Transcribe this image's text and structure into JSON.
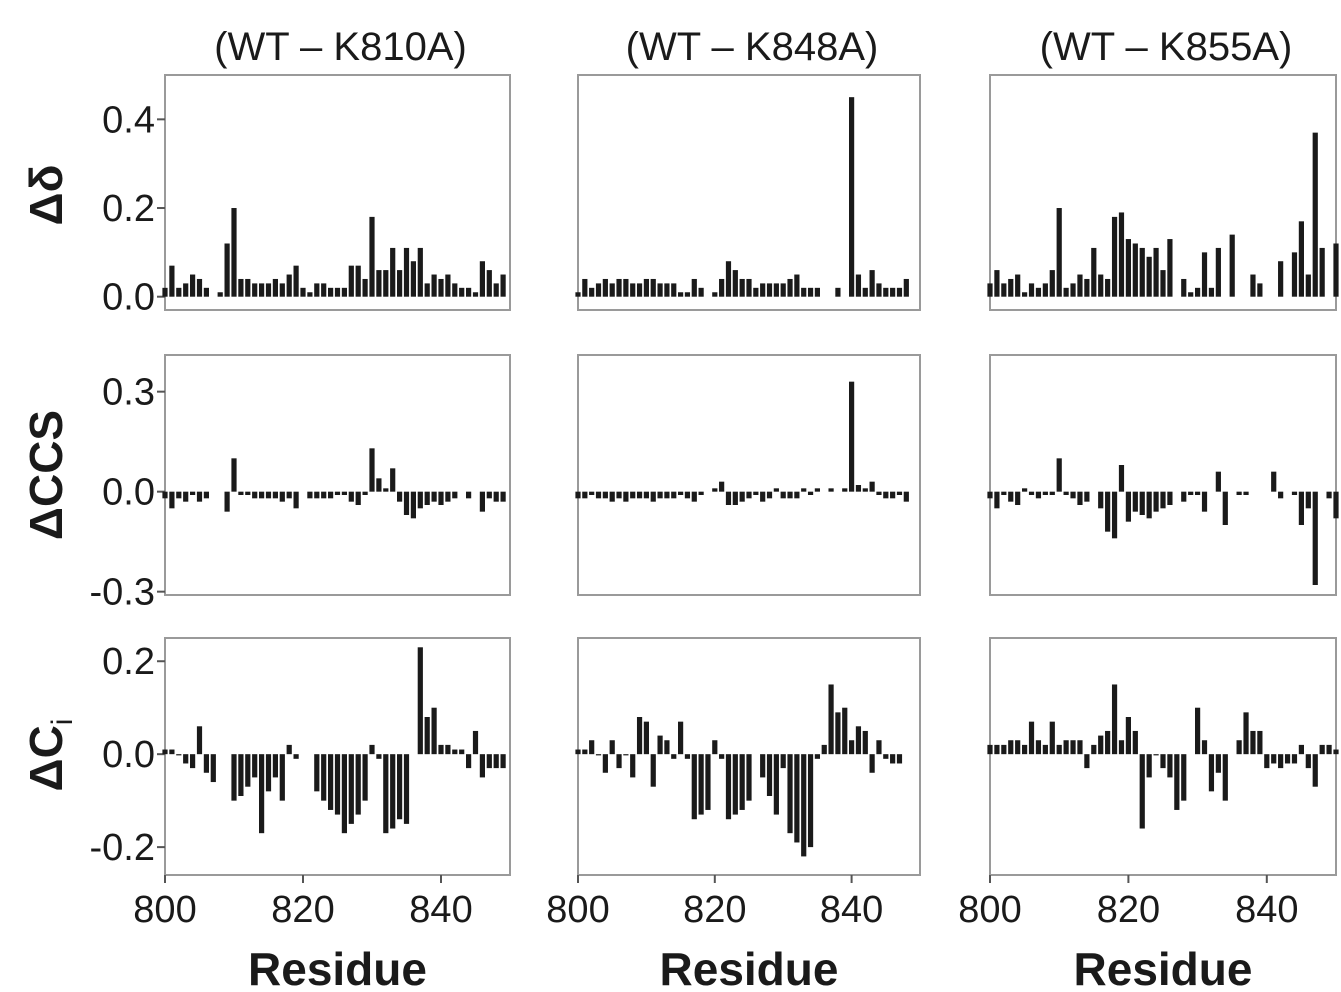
{
  "chart_data": [
    {
      "type": "bar",
      "title": "(WT – K810A)",
      "ylabel": "Δδ",
      "color": "#1a1a1a",
      "x": [
        800,
        801,
        802,
        803,
        804,
        805,
        806,
        807,
        808,
        809,
        810,
        811,
        812,
        813,
        814,
        815,
        816,
        817,
        818,
        819,
        820,
        821,
        822,
        823,
        824,
        825,
        826,
        827,
        828,
        829,
        830,
        831,
        832,
        833,
        834,
        835,
        836,
        837,
        838,
        839,
        840,
        841,
        842,
        843,
        844,
        845,
        846,
        847,
        848,
        849,
        850
      ],
      "values": [
        0.02,
        0.07,
        0.02,
        0.03,
        0.05,
        0.04,
        0.02,
        null,
        0.01,
        0.12,
        0.2,
        0.04,
        0.04,
        0.03,
        0.03,
        0.03,
        0.04,
        0.03,
        0.05,
        0.07,
        0.02,
        0.01,
        0.03,
        0.03,
        0.02,
        0.02,
        0.02,
        0.07,
        0.07,
        0.04,
        0.18,
        0.06,
        0.06,
        0.11,
        0.06,
        0.11,
        0.08,
        0.11,
        0.03,
        0.05,
        0.04,
        0.05,
        0.03,
        0.02,
        0.02,
        0.01,
        0.08,
        0.06,
        0.03,
        0.05,
        null
      ],
      "xlim": [
        800,
        850
      ],
      "ylim": [
        -0.03,
        0.5
      ],
      "yticks": [
        {
          "value": 0,
          "label": "0.0"
        },
        0.2,
        0.4
      ]
    },
    {
      "type": "bar",
      "title": "(WT – K848A)",
      "color": "#1a1a1a",
      "x": [
        800,
        801,
        802,
        803,
        804,
        805,
        806,
        807,
        808,
        809,
        810,
        811,
        812,
        813,
        814,
        815,
        816,
        817,
        818,
        819,
        820,
        821,
        822,
        823,
        824,
        825,
        826,
        827,
        828,
        829,
        830,
        831,
        832,
        833,
        834,
        835,
        836,
        837,
        838,
        839,
        840,
        841,
        842,
        843,
        844,
        845,
        846,
        847,
        848,
        849,
        850
      ],
      "values": [
        0.01,
        0.04,
        0.02,
        0.03,
        0.04,
        0.03,
        0.04,
        0.04,
        0.03,
        0.03,
        0.04,
        0.04,
        0.03,
        0.03,
        0.03,
        0.01,
        0.01,
        0.04,
        0.02,
        null,
        0.01,
        0.04,
        0.08,
        0.06,
        0.04,
        0.04,
        0.02,
        0.03,
        0.03,
        0.03,
        0.03,
        0.04,
        0.05,
        0.02,
        0.02,
        0.02,
        null,
        null,
        0.02,
        null,
        0.45,
        0.05,
        0.02,
        0.06,
        0.03,
        0.02,
        0.02,
        0.02,
        0.04,
        null,
        null
      ],
      "xlim": [
        800,
        850
      ],
      "ylim": [
        -0.03,
        0.5
      ]
    },
    {
      "type": "bar",
      "title": "(WT – K855A)",
      "color": "#1a1a1a",
      "x": [
        800,
        801,
        802,
        803,
        804,
        805,
        806,
        807,
        808,
        809,
        810,
        811,
        812,
        813,
        814,
        815,
        816,
        817,
        818,
        819,
        820,
        821,
        822,
        823,
        824,
        825,
        826,
        827,
        828,
        829,
        830,
        831,
        832,
        833,
        834,
        835,
        836,
        837,
        838,
        839,
        840,
        841,
        842,
        843,
        844,
        845,
        846,
        847,
        848,
        849,
        850
      ],
      "values": [
        0.03,
        0.06,
        0.03,
        0.04,
        0.05,
        0.01,
        0.03,
        0.02,
        0.03,
        0.06,
        0.2,
        0.02,
        0.03,
        0.05,
        0.04,
        0.11,
        0.05,
        0.04,
        0.18,
        0.19,
        0.13,
        0.12,
        0.11,
        0.09,
        0.11,
        0.06,
        0.13,
        null,
        0.04,
        0.01,
        0.02,
        0.1,
        0.02,
        0.11,
        null,
        0.14,
        null,
        null,
        0.05,
        0.03,
        null,
        null,
        0.08,
        null,
        0.1,
        0.17,
        0.05,
        0.37,
        0.11,
        null,
        0.12
      ],
      "xlim": [
        800,
        850
      ],
      "ylim": [
        -0.03,
        0.5
      ]
    },
    {
      "type": "bar",
      "ylabel": "ΔCCS",
      "color": "#1a1a1a",
      "x": [
        800,
        801,
        802,
        803,
        804,
        805,
        806,
        807,
        808,
        809,
        810,
        811,
        812,
        813,
        814,
        815,
        816,
        817,
        818,
        819,
        820,
        821,
        822,
        823,
        824,
        825,
        826,
        827,
        828,
        829,
        830,
        831,
        832,
        833,
        834,
        835,
        836,
        837,
        838,
        839,
        840,
        841,
        842,
        843,
        844,
        845,
        846,
        847,
        848,
        849,
        850
      ],
      "values": [
        -0.02,
        -0.05,
        -0.02,
        -0.03,
        -0.01,
        -0.03,
        -0.02,
        null,
        null,
        -0.06,
        0.1,
        -0.01,
        -0.01,
        -0.02,
        -0.02,
        -0.02,
        -0.02,
        -0.03,
        -0.02,
        -0.05,
        null,
        -0.02,
        -0.02,
        -0.02,
        -0.02,
        -0.01,
        -0.01,
        -0.03,
        -0.04,
        -0.01,
        0.13,
        0.04,
        0.01,
        0.07,
        -0.03,
        -0.07,
        -0.08,
        -0.05,
        -0.04,
        -0.03,
        -0.04,
        -0.03,
        -0.02,
        null,
        -0.02,
        null,
        -0.06,
        -0.02,
        -0.03,
        -0.03,
        null
      ],
      "xlim": [
        800,
        850
      ],
      "ylim": [
        -0.31,
        0.41
      ],
      "yticks": [
        -0.3,
        {
          "value": 0,
          "label": "0.0"
        },
        0.3
      ]
    },
    {
      "type": "bar",
      "color": "#1a1a1a",
      "x": [
        800,
        801,
        802,
        803,
        804,
        805,
        806,
        807,
        808,
        809,
        810,
        811,
        812,
        813,
        814,
        815,
        816,
        817,
        818,
        819,
        820,
        821,
        822,
        823,
        824,
        825,
        826,
        827,
        828,
        829,
        830,
        831,
        832,
        833,
        834,
        835,
        836,
        837,
        838,
        839,
        840,
        841,
        842,
        843,
        844,
        845,
        846,
        847,
        848,
        849,
        850
      ],
      "values": [
        -0.02,
        -0.02,
        -0.01,
        -0.02,
        -0.02,
        -0.03,
        -0.02,
        -0.03,
        -0.02,
        -0.02,
        -0.02,
        -0.03,
        -0.02,
        -0.02,
        -0.02,
        -0.01,
        -0.02,
        -0.03,
        -0.01,
        null,
        0.01,
        0.03,
        -0.04,
        -0.04,
        -0.03,
        -0.02,
        -0.01,
        -0.03,
        -0.02,
        0.01,
        -0.02,
        -0.02,
        -0.02,
        0.01,
        -0.01,
        0.01,
        null,
        0.01,
        null,
        0.01,
        0.33,
        0.02,
        0.01,
        0.03,
        -0.01,
        -0.02,
        -0.02,
        -0.01,
        -0.03,
        null,
        null
      ],
      "xlim": [
        800,
        850
      ],
      "ylim": [
        -0.31,
        0.41
      ]
    },
    {
      "type": "bar",
      "color": "#1a1a1a",
      "x": [
        800,
        801,
        802,
        803,
        804,
        805,
        806,
        807,
        808,
        809,
        810,
        811,
        812,
        813,
        814,
        815,
        816,
        817,
        818,
        819,
        820,
        821,
        822,
        823,
        824,
        825,
        826,
        827,
        828,
        829,
        830,
        831,
        832,
        833,
        834,
        835,
        836,
        837,
        838,
        839,
        840,
        841,
        842,
        843,
        844,
        845,
        846,
        847,
        848,
        849,
        850
      ],
      "values": [
        -0.02,
        -0.05,
        -0.01,
        -0.03,
        -0.04,
        0.01,
        -0.01,
        -0.02,
        -0.01,
        -0.01,
        0.1,
        -0.01,
        -0.02,
        -0.04,
        -0.03,
        null,
        -0.05,
        -0.12,
        -0.14,
        0.08,
        -0.09,
        -0.06,
        -0.07,
        -0.08,
        -0.06,
        -0.05,
        -0.04,
        null,
        -0.03,
        -0.01,
        -0.01,
        -0.06,
        null,
        0.06,
        -0.1,
        null,
        -0.01,
        -0.01,
        null,
        null,
        null,
        0.06,
        -0.02,
        null,
        -0.01,
        -0.1,
        -0.05,
        -0.28,
        null,
        -0.02,
        -0.08
      ],
      "xlim": [
        800,
        850
      ],
      "ylim": [
        -0.31,
        0.41
      ]
    },
    {
      "type": "bar",
      "ylabel": "ΔC",
      "ylabel_sub": "i",
      "xlabel": "Residue",
      "color": "#1a1a1a",
      "x": [
        800,
        801,
        802,
        803,
        804,
        805,
        806,
        807,
        808,
        809,
        810,
        811,
        812,
        813,
        814,
        815,
        816,
        817,
        818,
        819,
        820,
        821,
        822,
        823,
        824,
        825,
        826,
        827,
        828,
        829,
        830,
        831,
        832,
        833,
        834,
        835,
        836,
        837,
        838,
        839,
        840,
        841,
        842,
        843,
        844,
        845,
        846,
        847,
        848,
        849,
        850
      ],
      "values": [
        0.01,
        0.01,
        0.0,
        -0.02,
        -0.03,
        0.06,
        -0.04,
        -0.06,
        null,
        null,
        -0.1,
        -0.09,
        -0.07,
        -0.05,
        -0.17,
        -0.08,
        -0.05,
        -0.1,
        0.02,
        -0.01,
        null,
        null,
        -0.08,
        -0.1,
        -0.12,
        -0.13,
        -0.17,
        -0.15,
        -0.13,
        -0.1,
        0.02,
        -0.01,
        -0.17,
        -0.16,
        -0.14,
        -0.15,
        null,
        0.23,
        0.08,
        0.1,
        0.02,
        0.02,
        0.01,
        0.01,
        -0.03,
        0.05,
        -0.05,
        -0.03,
        -0.03,
        -0.03,
        null
      ],
      "xlim": [
        800,
        850
      ],
      "ylim": [
        -0.26,
        0.25
      ],
      "yticks": [
        -0.2,
        {
          "value": 0,
          "label": "0.0"
        },
        0.2
      ],
      "xticks": [
        800,
        820,
        840
      ]
    },
    {
      "type": "bar",
      "xlabel": "Residue",
      "color": "#1a1a1a",
      "x": [
        800,
        801,
        802,
        803,
        804,
        805,
        806,
        807,
        808,
        809,
        810,
        811,
        812,
        813,
        814,
        815,
        816,
        817,
        818,
        819,
        820,
        821,
        822,
        823,
        824,
        825,
        826,
        827,
        828,
        829,
        830,
        831,
        832,
        833,
        834,
        835,
        836,
        837,
        838,
        839,
        840,
        841,
        842,
        843,
        844,
        845,
        846,
        847,
        848,
        849,
        850
      ],
      "values": [
        0.01,
        0.01,
        0.03,
        0.0,
        -0.04,
        0.03,
        -0.03,
        0.0,
        -0.05,
        0.08,
        0.07,
        -0.07,
        0.04,
        0.03,
        -0.01,
        0.07,
        -0.01,
        -0.14,
        -0.13,
        -0.12,
        0.03,
        -0.01,
        -0.14,
        -0.13,
        -0.12,
        -0.1,
        null,
        -0.05,
        -0.09,
        -0.13,
        -0.03,
        -0.17,
        -0.19,
        -0.22,
        -0.2,
        -0.01,
        0.02,
        0.15,
        0.09,
        0.1,
        0.03,
        0.06,
        0.05,
        -0.04,
        0.03,
        -0.01,
        -0.02,
        -0.02,
        null,
        null,
        null
      ],
      "xlim": [
        800,
        850
      ],
      "ylim": [
        -0.26,
        0.25
      ],
      "xticks": [
        800,
        820,
        840
      ]
    },
    {
      "type": "bar",
      "xlabel": "Residue",
      "color": "#1a1a1a",
      "x": [
        800,
        801,
        802,
        803,
        804,
        805,
        806,
        807,
        808,
        809,
        810,
        811,
        812,
        813,
        814,
        815,
        816,
        817,
        818,
        819,
        820,
        821,
        822,
        823,
        824,
        825,
        826,
        827,
        828,
        829,
        830,
        831,
        832,
        833,
        834,
        835,
        836,
        837,
        838,
        839,
        840,
        841,
        842,
        843,
        844,
        845,
        846,
        847,
        848,
        849,
        850
      ],
      "values": [
        0.02,
        0.02,
        0.02,
        0.03,
        0.03,
        0.02,
        0.07,
        0.03,
        0.02,
        0.07,
        0.02,
        0.03,
        0.03,
        0.03,
        -0.03,
        0.02,
        0.04,
        0.05,
        0.15,
        0.03,
        0.08,
        0.05,
        -0.16,
        -0.05,
        0.0,
        -0.03,
        -0.05,
        -0.12,
        -0.1,
        null,
        0.1,
        0.03,
        -0.08,
        -0.04,
        -0.1,
        null,
        0.03,
        0.09,
        0.05,
        0.05,
        -0.03,
        -0.02,
        -0.03,
        -0.02,
        -0.02,
        0.02,
        -0.03,
        -0.07,
        0.02,
        0.02,
        0.01
      ],
      "xlim": [
        800,
        850
      ],
      "ylim": [
        -0.26,
        0.25
      ],
      "xticks": [
        800,
        820,
        840
      ]
    }
  ]
}
